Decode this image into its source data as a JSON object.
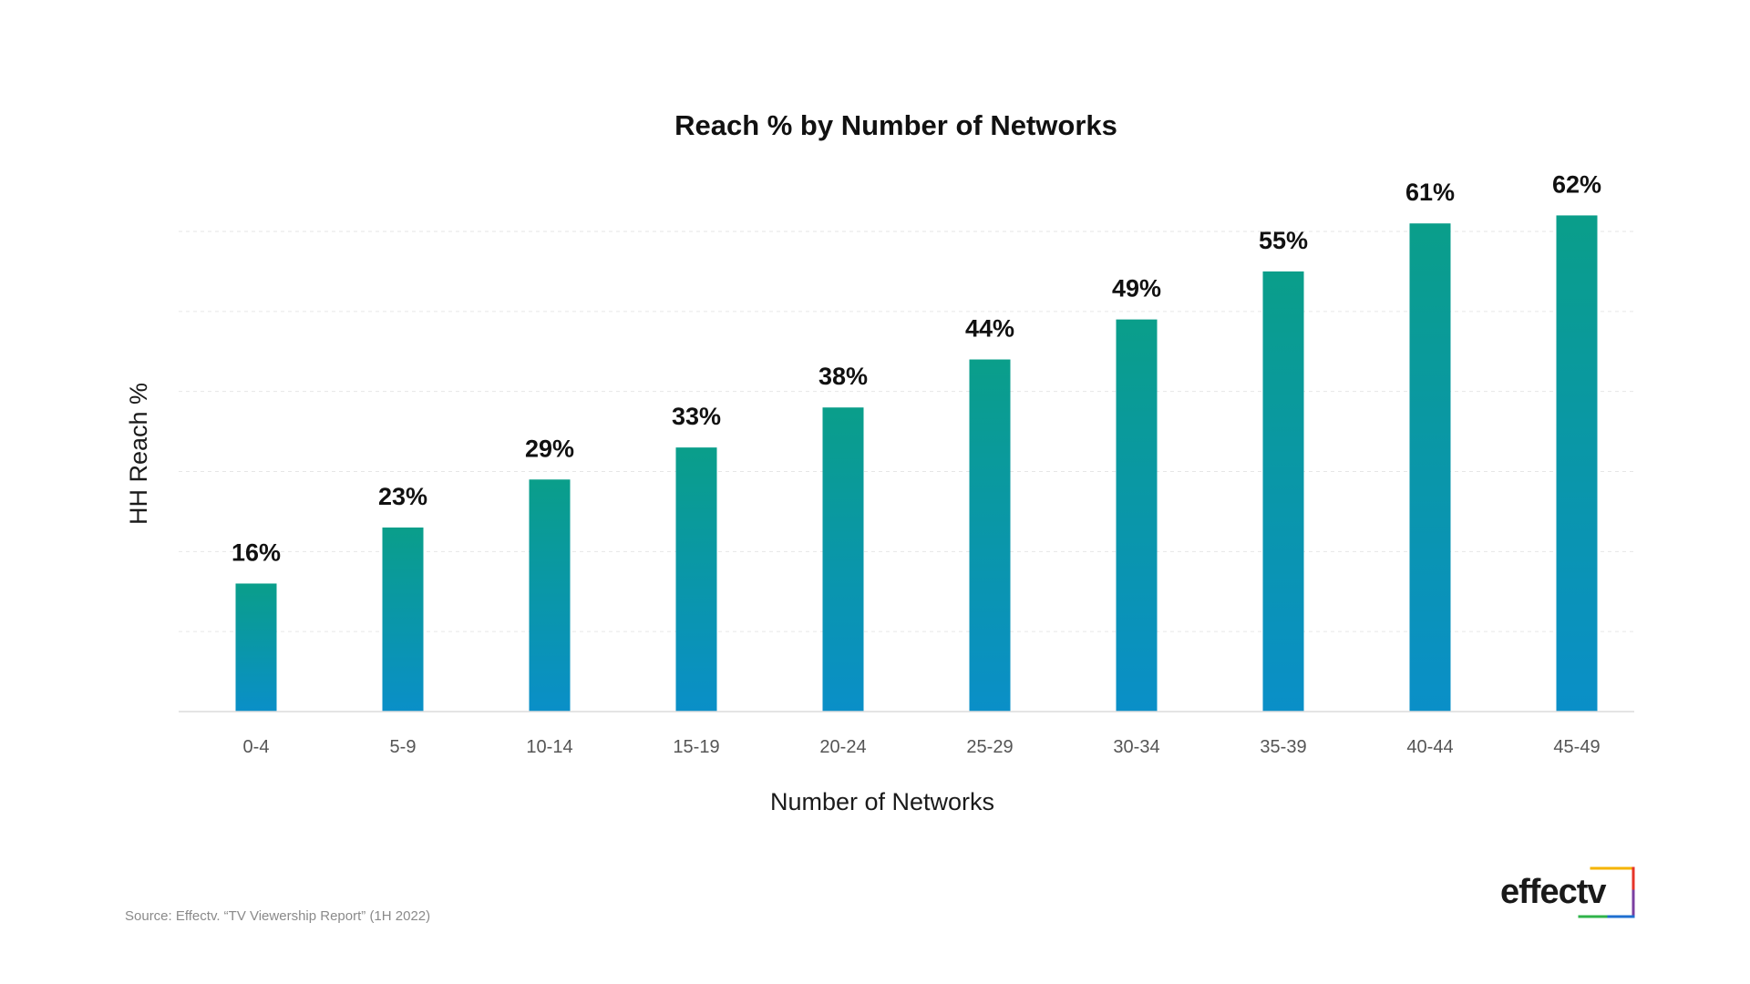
{
  "chart_data": {
    "type": "bar",
    "title": "Reach % by Number of Networks",
    "xlabel": "Number of Networks",
    "ylabel": "HH Reach %",
    "categories": [
      "0-4",
      "5-9",
      "10-14",
      "15-19",
      "20-24",
      "25-29",
      "30-34",
      "35-39",
      "40-44",
      "45-49"
    ],
    "values": [
      16,
      23,
      29,
      33,
      38,
      44,
      49,
      55,
      61,
      62
    ],
    "data_labels": [
      "16%",
      "23%",
      "29%",
      "33%",
      "38%",
      "44%",
      "49%",
      "55%",
      "61%",
      "62%"
    ],
    "ylim": [
      0,
      60
    ],
    "gridlines": [
      10,
      20,
      30,
      40,
      50,
      60
    ],
    "grid": true,
    "legend": "none",
    "bar_gradient": {
      "top": "#0a9e8a",
      "bottom": "#0a8fc8"
    }
  },
  "source": "Source: Effectv. “TV Viewership Report” (1H 2022)",
  "logo": {
    "text": "effectv",
    "colors": [
      "#f5b400",
      "#e6342a",
      "#7b3fa0",
      "#1e6fd0",
      "#2fb34a"
    ]
  }
}
